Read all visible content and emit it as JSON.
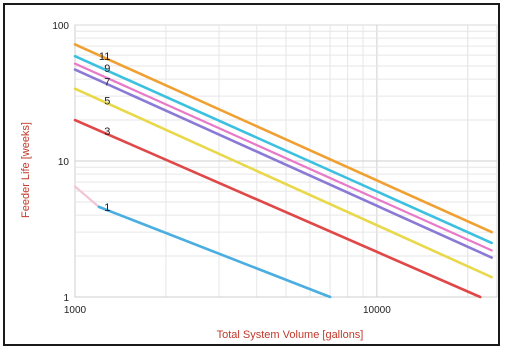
{
  "chart_data": {
    "type": "line",
    "title": "",
    "xlabel": "Total System Volume [gallons]",
    "ylabel": "Feeder Life [weeks]",
    "x_scale": "log",
    "y_scale": "log",
    "xlim": [
      1000,
      25000
    ],
    "ylim": [
      1,
      100
    ],
    "grid": true,
    "legend": "inline labels near left end of each line",
    "x_tick_labels": [
      "1000",
      "10000"
    ],
    "x_ticks": [
      1000,
      10000
    ],
    "y_tick_labels": [
      "1",
      "10",
      "100"
    ],
    "y_ticks": [
      1,
      10,
      100
    ],
    "series": [
      {
        "name": "11",
        "color": "#f0a033",
        "x": [
          1000,
          24000
        ],
        "y": [
          72,
          3.0
        ]
      },
      {
        "name": "9",
        "color": "#3cc0e0",
        "x": [
          1000,
          24000
        ],
        "y": [
          59,
          2.5
        ]
      },
      {
        "name": "7",
        "color": "#8a7ad6",
        "x": [
          1000,
          24000
        ],
        "y": [
          47,
          1.95
        ]
      },
      {
        "name": "5",
        "color": "#e8d84a",
        "x": [
          1000,
          24000
        ],
        "y": [
          34,
          1.4
        ]
      },
      {
        "name": "3",
        "color": "#e04848",
        "x": [
          1000,
          22000
        ],
        "y": [
          20,
          1.0
        ]
      },
      {
        "name": "1",
        "color": "#4aaee0",
        "x": [
          1200,
          7000
        ],
        "y": [
          4.6,
          1.0
        ]
      }
    ],
    "extra_lines": [
      {
        "color": "#f3c4d4",
        "x": [
          1000,
          1200
        ],
        "y": [
          6.5,
          4.6
        ]
      },
      {
        "color": "#e879c8",
        "x": [
          1000,
          24000
        ],
        "y": [
          52,
          2.2
        ]
      }
    ]
  }
}
